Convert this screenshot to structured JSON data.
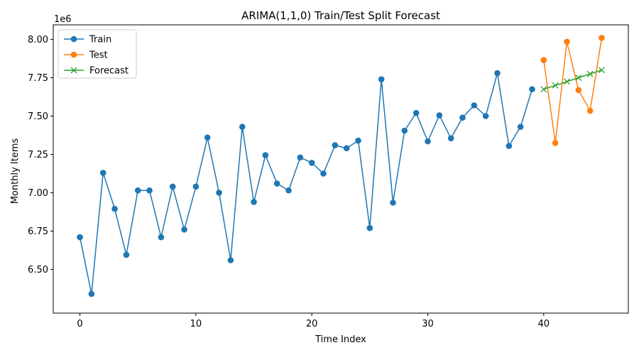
{
  "chart_data": {
    "type": "line",
    "title": "ARIMA(1,1,0) Train/Test Split Forecast",
    "xlabel": "Time Index",
    "ylabel": "Monthly Items",
    "offset_label": "1e6",
    "xlim": [
      -2.3,
      47.3
    ],
    "ylim": [
      6.215,
      8.095
    ],
    "x_ticks": [
      0,
      10,
      20,
      30,
      40
    ],
    "x_tick_labels": [
      "0",
      "10",
      "20",
      "30",
      "40"
    ],
    "y_ticks": [
      6.5,
      6.75,
      7.0,
      7.25,
      7.5,
      7.75,
      8.0
    ],
    "y_tick_labels": [
      "6.50",
      "6.75",
      "7.00",
      "7.25",
      "7.50",
      "7.75",
      "8.00"
    ],
    "y_scale": 1000000,
    "grid": false,
    "legend_position": "upper-left",
    "series": [
      {
        "name": "Train",
        "color": "#1f77b4",
        "marker": "circle",
        "x": [
          0,
          1,
          2,
          3,
          4,
          5,
          6,
          7,
          8,
          9,
          10,
          11,
          12,
          13,
          14,
          15,
          16,
          17,
          18,
          19,
          20,
          21,
          22,
          23,
          24,
          25,
          26,
          27,
          28,
          29,
          30,
          31,
          32,
          33,
          34,
          35,
          36,
          37,
          38,
          39
        ],
        "values": [
          6710000,
          6340000,
          7130000,
          6895000,
          6595000,
          7015000,
          7015000,
          6710000,
          7040000,
          6760000,
          7040000,
          7360000,
          7000000,
          6560000,
          7430000,
          6940000,
          7245000,
          7060000,
          7015000,
          7230000,
          7195000,
          7125000,
          7310000,
          7290000,
          7340000,
          6770000,
          7740000,
          6935000,
          7405000,
          7520000,
          7335000,
          7505000,
          7355000,
          7490000,
          7570000,
          7500000,
          7780000,
          7305000,
          7430000,
          7675000
        ]
      },
      {
        "name": "Test",
        "color": "#ff7f0e",
        "marker": "circle",
        "x": [
          40,
          41,
          42,
          43,
          44,
          45
        ],
        "values": [
          7865000,
          7325000,
          7985000,
          7670000,
          7535000,
          8010000
        ]
      },
      {
        "name": "Forecast",
        "color": "#2ca02c",
        "marker": "x",
        "x": [
          40,
          41,
          42,
          43,
          44,
          45
        ],
        "values": [
          7675000,
          7700000,
          7725000,
          7750000,
          7775000,
          7800000
        ]
      }
    ]
  }
}
